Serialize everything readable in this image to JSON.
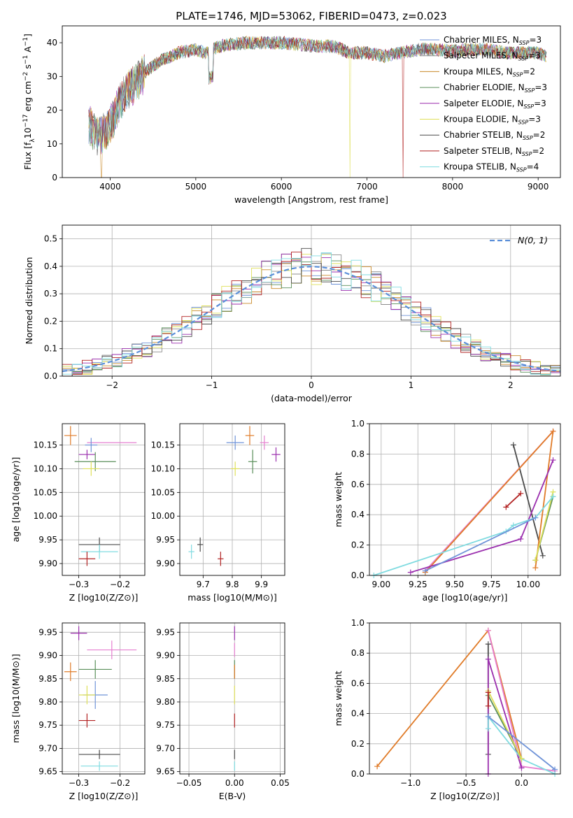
{
  "figure": {
    "title": "PLATE=1746, MJD=53062, FIBERID=0473, z=0.023"
  },
  "chart_data": [
    {
      "id": "spectrum",
      "type": "line",
      "xlabel": "wavelength [Angstrom, rest frame]",
      "ylabel": "Flux [f_λ10^-17 erg cm^-2 s^-1 A^-1]",
      "xlim": [
        3440,
        9260
      ],
      "ylim": [
        0,
        45
      ],
      "xticks": [
        4000,
        5000,
        6000,
        7000,
        8000,
        9000
      ],
      "yticks": [
        0,
        10,
        20,
        30,
        40
      ],
      "legend": "top-right",
      "series": [
        {
          "name": "Chabrier MILES, N_SSP=3",
          "color": "#6f93d8"
        },
        {
          "name": "Salpeter MILES, N_SSP=3",
          "color": "#8c8c8c"
        },
        {
          "name": "Kroupa MILES, N_SSP=2",
          "color": "#c98a2a"
        },
        {
          "name": "Chabrier ELODIE, N_SSP=3",
          "color": "#5a8f5a"
        },
        {
          "name": "Salpeter ELODIE, N_SSP=3",
          "color": "#9b2fae"
        },
        {
          "name": "Kroupa ELODIE, N_SSP=3",
          "color": "#dfe05a"
        },
        {
          "name": "Chabrier STELIB, N_SSP=2",
          "color": "#4a4a4a"
        },
        {
          "name": "Salpeter STELIB, N_SSP=2",
          "color": "#b22222"
        },
        {
          "name": "Kroupa STELIB, N_SSP=4",
          "color": "#7fdbe0"
        }
      ],
      "envelope": {
        "x": [
          3750,
          3850,
          3950,
          4050,
          4100,
          4200,
          4300,
          4400,
          4500,
          4600,
          4700,
          4800,
          4900,
          5000,
          5100,
          5200,
          5300,
          5400,
          5600,
          5800,
          6000,
          6200,
          6400,
          6600,
          6800,
          7000,
          7200,
          7400,
          7600,
          7800,
          8000,
          8200,
          8400,
          8600,
          8800,
          9000,
          9100
        ],
        "y": [
          16,
          12,
          14,
          18,
          22,
          26,
          28,
          31,
          33,
          35,
          36,
          37,
          37.5,
          38,
          37,
          38,
          39,
          39.5,
          40,
          40,
          40,
          39.5,
          39,
          39,
          37,
          37,
          36,
          37,
          38,
          38,
          37.5,
          38,
          38,
          37,
          37,
          37,
          36
        ]
      },
      "dips": [
        {
          "x": 3900,
          "y": 0
        },
        {
          "x": 6800,
          "y": 0
        },
        {
          "x": 7420,
          "y": 0
        }
      ]
    },
    {
      "id": "residuals",
      "type": "histogram",
      "xlabel": "(data-model)/error",
      "ylabel": "Normed distribution",
      "xlim": [
        -2.5,
        2.5
      ],
      "ylim": [
        0,
        0.55
      ],
      "xticks": [
        -2,
        -1,
        0,
        1,
        2
      ],
      "yticks": [
        0.0,
        0.1,
        0.2,
        0.3,
        0.4,
        0.5
      ],
      "grid": true,
      "legend": "top-right",
      "reference_label": "N(0, 1)",
      "reference_color": "#5b8fd9",
      "bin_width": 0.1
    },
    {
      "id": "age-vs-Z",
      "type": "scatter",
      "xlabel": "Z [log10(Z/Z⊙)]",
      "ylabel": "age  [log10(age/yr)]",
      "xlim": [
        -0.34,
        -0.14
      ],
      "ylim": [
        9.875,
        10.195
      ],
      "xticks": [
        -0.3,
        -0.2
      ],
      "yticks": [
        9.9,
        9.95,
        10.0,
        10.05,
        10.1,
        10.15
      ],
      "grid": true,
      "points": [
        {
          "x": -0.32,
          "y": 10.17,
          "xe": 0.015,
          "ye": 0.02,
          "c": "#e07b28"
        },
        {
          "x": -0.22,
          "y": 10.155,
          "xe": 0.06,
          "ye": 0.0,
          "c": "#e67fd0"
        },
        {
          "x": -0.27,
          "y": 10.15,
          "xe": 0.015,
          "ye": 0.015,
          "c": "#6f93d8"
        },
        {
          "x": -0.28,
          "y": 10.13,
          "xe": 0.02,
          "ye": 0.01,
          "c": "#9b2fae"
        },
        {
          "x": -0.26,
          "y": 10.115,
          "xe": 0.05,
          "ye": 0.02,
          "c": "#5a8f5a"
        },
        {
          "x": -0.27,
          "y": 10.1,
          "xe": 0.02,
          "ye": 0.015,
          "c": "#dfe05a"
        },
        {
          "x": -0.25,
          "y": 9.94,
          "xe": 0.05,
          "ye": 0.015,
          "c": "#4a4a4a"
        },
        {
          "x": -0.25,
          "y": 9.925,
          "xe": 0.045,
          "ye": 0.015,
          "c": "#7fdbe0"
        },
        {
          "x": -0.28,
          "y": 9.91,
          "xe": 0.02,
          "ye": 0.015,
          "c": "#b22222"
        }
      ]
    },
    {
      "id": "age-vs-mass",
      "type": "scatter",
      "xlabel": "mass [log10(M/M⊙)]",
      "ylabel": "",
      "xlim": [
        9.62,
        9.98
      ],
      "ylim": [
        9.875,
        10.195
      ],
      "xticks": [
        9.7,
        9.8,
        9.9
      ],
      "yticks": [
        9.9,
        9.95,
        10.0,
        10.05,
        10.1,
        10.15
      ],
      "grid": true,
      "points": [
        {
          "x": 9.86,
          "y": 10.17,
          "xe": 0.015,
          "ye": 0.02,
          "c": "#e07b28"
        },
        {
          "x": 9.91,
          "y": 10.155,
          "xe": 0.015,
          "ye": 0.015,
          "c": "#e67fd0"
        },
        {
          "x": 9.81,
          "y": 10.155,
          "xe": 0.03,
          "ye": 0.015,
          "c": "#6f93d8"
        },
        {
          "x": 9.95,
          "y": 10.13,
          "xe": 0.015,
          "ye": 0.015,
          "c": "#9b2fae"
        },
        {
          "x": 9.87,
          "y": 10.115,
          "xe": 0.015,
          "ye": 0.025,
          "c": "#5a8f5a"
        },
        {
          "x": 9.81,
          "y": 10.1,
          "xe": 0.015,
          "ye": 0.015,
          "c": "#dfe05a"
        },
        {
          "x": 9.69,
          "y": 9.94,
          "xe": 0.01,
          "ye": 0.015,
          "c": "#4a4a4a"
        },
        {
          "x": 9.66,
          "y": 9.925,
          "xe": 0.01,
          "ye": 0.015,
          "c": "#7fdbe0"
        },
        {
          "x": 9.76,
          "y": 9.91,
          "xe": 0.01,
          "ye": 0.015,
          "c": "#b22222"
        }
      ]
    },
    {
      "id": "weight-vs-age",
      "type": "line",
      "xlabel": "age  [log10(age/yr)]",
      "ylabel": "mass weight",
      "xlim": [
        8.92,
        10.22
      ],
      "ylim": [
        0,
        1.0
      ],
      "xticks": [
        9.0,
        9.25,
        9.5,
        9.75,
        10.0
      ],
      "yticks": [
        0.0,
        0.2,
        0.4,
        0.6,
        0.8,
        1.0
      ],
      "grid": true,
      "series": [
        {
          "c": "#4a4a4a",
          "x": [
            9.9,
            10.1
          ],
          "y": [
            0.86,
            0.13
          ]
        },
        {
          "c": "#e67fd0",
          "x": [
            9.3,
            10.17
          ],
          "y": [
            0.03,
            0.95
          ]
        },
        {
          "c": "#e07b28",
          "x": [
            9.3,
            10.17,
            10.05
          ],
          "y": [
            0.02,
            0.95,
            0.05
          ]
        },
        {
          "c": "#9b2fae",
          "x": [
            9.2,
            9.95,
            10.17
          ],
          "y": [
            0.02,
            0.24,
            0.76
          ]
        },
        {
          "c": "#5a8f5a",
          "x": [
            10.05,
            10.17
          ],
          "y": [
            0.1,
            0.52
          ]
        },
        {
          "c": "#dfe05a",
          "x": [
            10.05,
            10.17
          ],
          "y": [
            0.1,
            0.55
          ]
        },
        {
          "c": "#b22222",
          "x": [
            9.85,
            9.95
          ],
          "y": [
            0.45,
            0.54
          ]
        },
        {
          "c": "#7fdbe0",
          "x": [
            8.95,
            9.85,
            9.9,
            10.05,
            10.17
          ],
          "y": [
            0.0,
            0.29,
            0.33,
            0.38,
            0.52
          ]
        },
        {
          "c": "#6f93d8",
          "x": [
            9.3,
            10.05
          ],
          "y": [
            0.03,
            0.38
          ]
        }
      ]
    },
    {
      "id": "mass-vs-Z",
      "type": "scatter",
      "xlabel": "Z [log10(Z/Z⊙)]",
      "ylabel": "mass [log10(M/M⊙)]",
      "xlim": [
        -0.34,
        -0.14
      ],
      "ylim": [
        9.645,
        9.97
      ],
      "xticks": [
        -0.3,
        -0.2
      ],
      "yticks": [
        9.65,
        9.7,
        9.75,
        9.8,
        9.85,
        9.9,
        9.95
      ],
      "grid": true,
      "points": [
        {
          "x": -0.3,
          "y": 9.948,
          "xe": 0.02,
          "ye": 0.015,
          "c": "#9b2fae"
        },
        {
          "x": -0.22,
          "y": 9.912,
          "xe": 0.06,
          "ye": 0.02,
          "c": "#e67fd0"
        },
        {
          "x": -0.26,
          "y": 9.87,
          "xe": 0.04,
          "ye": 0.02,
          "c": "#5a8f5a"
        },
        {
          "x": -0.32,
          "y": 9.865,
          "xe": 0.015,
          "ye": 0.02,
          "c": "#e07b28"
        },
        {
          "x": -0.26,
          "y": 9.815,
          "xe": 0.03,
          "ye": 0.03,
          "c": "#6f93d8"
        },
        {
          "x": -0.28,
          "y": 9.815,
          "xe": 0.02,
          "ye": 0.02,
          "c": "#dfe05a"
        },
        {
          "x": -0.28,
          "y": 9.76,
          "xe": 0.02,
          "ye": 0.015,
          "c": "#b22222"
        },
        {
          "x": -0.25,
          "y": 9.687,
          "xe": 0.05,
          "ye": 0.01,
          "c": "#4a4a4a"
        },
        {
          "x": -0.25,
          "y": 9.662,
          "xe": 0.045,
          "ye": 0.01,
          "c": "#7fdbe0"
        }
      ]
    },
    {
      "id": "mass-vs-ebv",
      "type": "scatter",
      "xlabel": "E(B-V)",
      "ylabel": "",
      "xlim": [
        -0.06,
        0.055
      ],
      "ylim": [
        9.645,
        9.97
      ],
      "xticks": [
        -0.05,
        0.0,
        0.05
      ],
      "yticks": [
        9.65,
        9.7,
        9.75,
        9.8,
        9.85,
        9.9,
        9.95
      ],
      "grid": true,
      "points": [
        {
          "x": 0,
          "y": 9.948,
          "xe": 0,
          "ye": 0.015,
          "c": "#9b2fae"
        },
        {
          "x": 0,
          "y": 9.912,
          "xe": 0,
          "ye": 0.015,
          "c": "#e67fd0"
        },
        {
          "x": 0,
          "y": 9.87,
          "xe": 0,
          "ye": 0.02,
          "c": "#5a8f5a"
        },
        {
          "x": 0,
          "y": 9.865,
          "xe": 0,
          "ye": 0.015,
          "c": "#e07b28"
        },
        {
          "x": 0,
          "y": 9.815,
          "xe": 0,
          "ye": 0.02,
          "c": "#dfe05a"
        },
        {
          "x": 0,
          "y": 9.76,
          "xe": 0,
          "ye": 0.015,
          "c": "#b22222"
        },
        {
          "x": 0,
          "y": 9.687,
          "xe": 0,
          "ye": 0.01,
          "c": "#4a4a4a"
        },
        {
          "x": 0,
          "y": 9.662,
          "xe": 0,
          "ye": 0.01,
          "c": "#7fdbe0"
        }
      ]
    },
    {
      "id": "weight-vs-Z",
      "type": "line",
      "xlabel": "Z [log10(Z/Z⊙)]",
      "ylabel": "mass weight",
      "xlim": [
        -1.37,
        0.35
      ],
      "ylim": [
        0,
        1.0
      ],
      "xticks": [
        -1.0,
        -0.5,
        0.0
      ],
      "yticks": [
        0.0,
        0.2,
        0.4,
        0.6,
        0.8,
        1.0
      ],
      "grid": true,
      "series": [
        {
          "c": "#e07b28",
          "x": [
            -1.3,
            -0.3,
            0.0
          ],
          "y": [
            0.05,
            0.95,
            0.1
          ]
        },
        {
          "c": "#e67fd0",
          "x": [
            -0.3,
            0.0,
            0.3
          ],
          "y": [
            0.95,
            0.05,
            0.02
          ]
        },
        {
          "c": "#4a4a4a",
          "x": [
            -0.3,
            -0.3
          ],
          "y": [
            0.13,
            0.86
          ]
        },
        {
          "c": "#9b2fae",
          "x": [
            -0.3,
            -0.3,
            0.0
          ],
          "y": [
            0.0,
            0.76,
            0.04
          ]
        },
        {
          "c": "#7fdbe0",
          "x": [
            -0.3,
            -0.3,
            0.0,
            0.3
          ],
          "y": [
            0.3,
            0.38,
            0.1,
            0.0
          ]
        },
        {
          "c": "#5a8f5a",
          "x": [
            -0.3,
            0.0
          ],
          "y": [
            0.52,
            0.1
          ]
        },
        {
          "c": "#dfe05a",
          "x": [
            -0.3,
            0.0
          ],
          "y": [
            0.55,
            0.1
          ]
        },
        {
          "c": "#b22222",
          "x": [
            -0.3,
            -0.3
          ],
          "y": [
            0.45,
            0.54
          ]
        },
        {
          "c": "#6f93d8",
          "x": [
            -0.3,
            0.3
          ],
          "y": [
            0.38,
            0.03
          ]
        }
      ]
    }
  ]
}
